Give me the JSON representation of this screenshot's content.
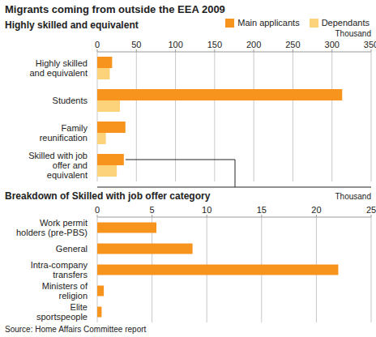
{
  "title": "Migrants coming from outside the EEA 2009",
  "source": "Source: Home Affairs Committee report",
  "chart_data": [
    {
      "type": "bar",
      "orientation": "horizontal",
      "title": "Highly skilled and equivalent",
      "x_label": "Thousand",
      "categories": [
        "Highly skilled and equivalent",
        "Students",
        "Family reunification",
        "Skilled with job offer and equivalent"
      ],
      "series": [
        {
          "name": "Main applicants",
          "color": "#f7941d",
          "values": [
            19,
            313,
            36,
            34
          ]
        },
        {
          "name": "Dependants",
          "color": "#fcd37a",
          "values": [
            16,
            29,
            11,
            25
          ]
        }
      ],
      "xlim": [
        0,
        350
      ],
      "xticks": [
        0,
        50,
        100,
        150,
        200,
        250,
        300,
        350
      ],
      "grid": true,
      "legend": "top right"
    },
    {
      "type": "bar",
      "orientation": "horizontal",
      "title": "Breakdown of Skilled with job offer category",
      "x_label": "Thousand",
      "categories": [
        "Work permit holders (pre-PBS)",
        "General",
        "Intra-company transfers",
        "Ministers of religion",
        "Elite sportspeople"
      ],
      "values": [
        5.4,
        8.7,
        22,
        0.6,
        0.4
      ],
      "color": "#f7941d",
      "xlim": [
        0,
        25
      ],
      "xticks": [
        0,
        5,
        10,
        15,
        20,
        25
      ],
      "grid": true
    }
  ]
}
